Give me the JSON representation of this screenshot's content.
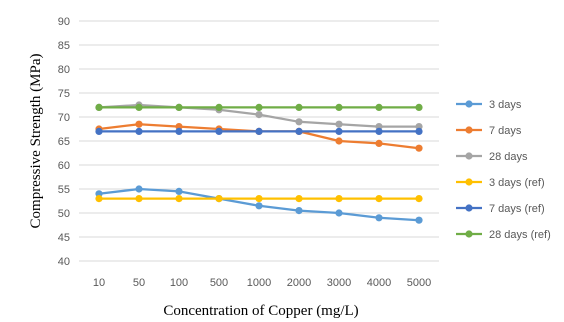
{
  "chart_data": {
    "type": "line",
    "title": "",
    "xlabel": "Concentration of Copper (mg/L)",
    "ylabel": "Compressive Strength (MPa)",
    "categories": [
      "10",
      "50",
      "100",
      "500",
      "1000",
      "2000",
      "3000",
      "4000",
      "5000"
    ],
    "ylim": [
      40,
      90
    ],
    "yticks": [
      40,
      45,
      50,
      55,
      60,
      65,
      70,
      75,
      80,
      85,
      90
    ],
    "grid": true,
    "legend_position": "right",
    "series": [
      {
        "name": "3 days",
        "color": "#5b9bd5",
        "values": [
          54,
          55,
          54.5,
          53,
          51.5,
          50.5,
          50,
          49,
          48.5
        ]
      },
      {
        "name": "7 days",
        "color": "#ed7d31",
        "values": [
          67.5,
          68.5,
          68,
          67.5,
          67,
          67,
          65,
          64.5,
          63.5
        ]
      },
      {
        "name": "28 days",
        "color": "#a5a5a5",
        "values": [
          72,
          72.5,
          72,
          71.5,
          70.5,
          69,
          68.5,
          68,
          68
        ]
      },
      {
        "name": "3 days (ref)",
        "color": "#ffc000",
        "values": [
          53,
          53,
          53,
          53,
          53,
          53,
          53,
          53,
          53
        ]
      },
      {
        "name": "7 days (ref)",
        "color": "#4472c4",
        "values": [
          67,
          67,
          67,
          67,
          67,
          67,
          67,
          67,
          67
        ]
      },
      {
        "name": "28 days (ref)",
        "color": "#70ad47",
        "values": [
          72,
          72,
          72,
          72,
          72,
          72,
          72,
          72,
          72
        ]
      }
    ]
  }
}
